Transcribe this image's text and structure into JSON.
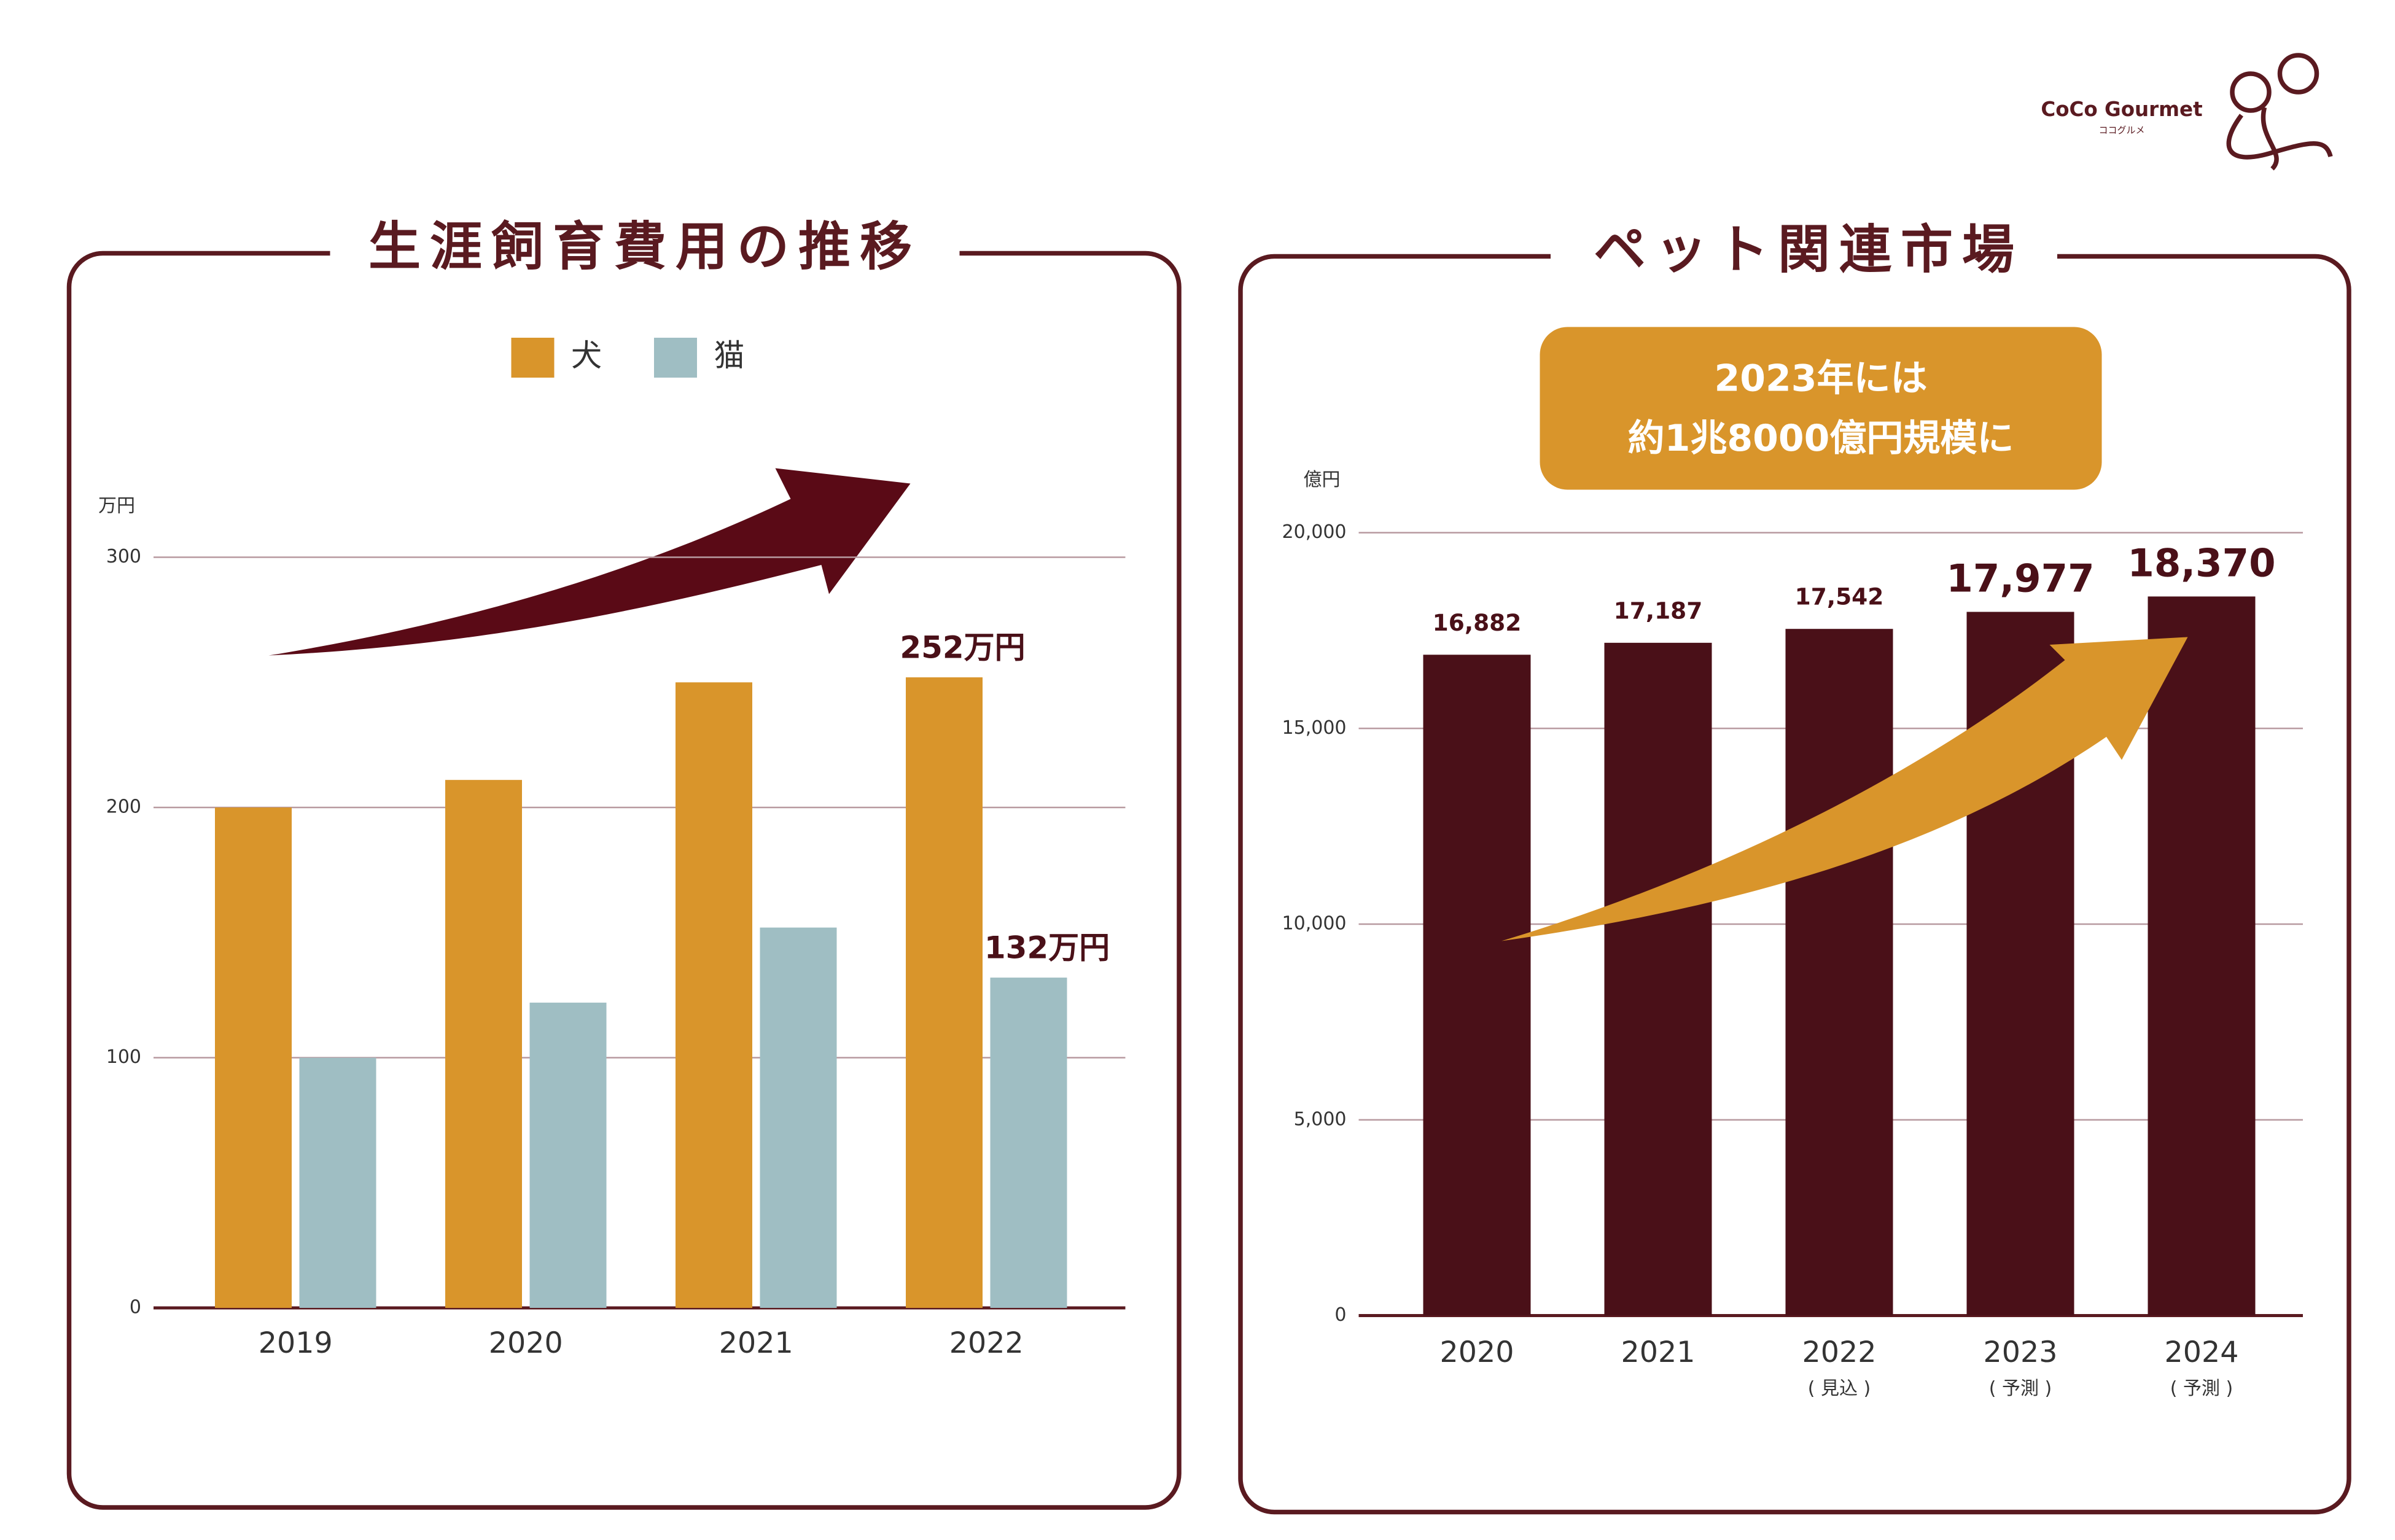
{
  "brand": {
    "name": "CoCo Gourmet",
    "kana": "ココグルメ"
  },
  "chart_data": [
    {
      "type": "bar",
      "title": "生涯飼育費用の推移",
      "y_label": "万円",
      "categories": [
        "2019",
        "2020",
        "2021",
        "2022"
      ],
      "series": [
        {
          "name": "犬",
          "color": "#d9952b",
          "values": [
            200,
            211,
            250,
            252
          ],
          "value_labels": [
            null,
            null,
            null,
            "252万円"
          ]
        },
        {
          "name": "猫",
          "color": "#9fbec3",
          "values": [
            100,
            122,
            152,
            132
          ],
          "value_labels": [
            null,
            null,
            null,
            "132万円"
          ]
        }
      ],
      "ylim": [
        0,
        300
      ],
      "yticks": [
        0,
        100,
        200,
        300
      ],
      "grid": true,
      "legend": "top"
    },
    {
      "type": "bar",
      "title": "ペット関連市場",
      "y_label": "億円",
      "annotations": [
        "2023年には",
        "約1兆8000億円規模に"
      ],
      "categories": [
        "2020",
        "2021",
        "2022",
        "2023",
        "2024"
      ],
      "category_notes": [
        null,
        null,
        "( 見込 )",
        "( 予測 )",
        "( 予測 )"
      ],
      "series": [
        {
          "color": "#4a1018",
          "values": [
            16882,
            17187,
            17542,
            17977,
            18370
          ],
          "value_labels": [
            "16,882",
            "17,187",
            "17,542",
            "17,977",
            "18,370"
          ]
        }
      ],
      "ylim": [
        0,
        20000
      ],
      "yticks": [
        0,
        {
          "value": 5000,
          "label": "5,000"
        },
        {
          "value": 10000,
          "label": "10,000"
        },
        {
          "value": 15000,
          "label": "15,000"
        },
        {
          "value": 20000,
          "label": "20,000"
        }
      ],
      "grid": true
    }
  ]
}
